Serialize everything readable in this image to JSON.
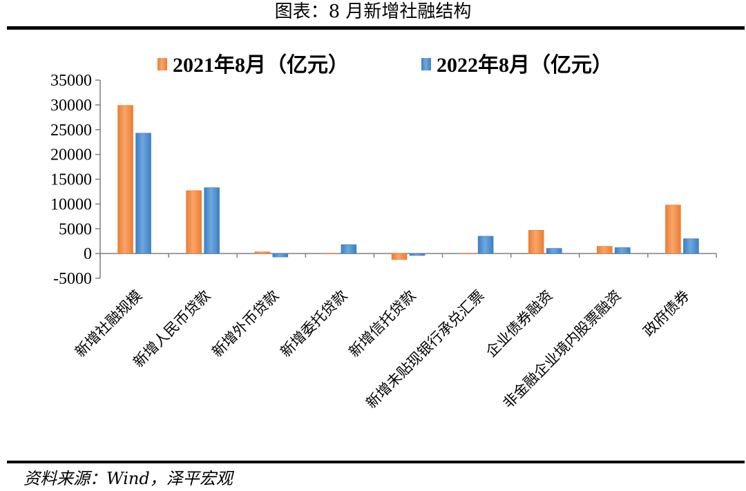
{
  "header": {
    "title": "图表：8 月新增社融结构"
  },
  "footer": {
    "source": "资料来源：Wind，泽平宏观"
  },
  "colors": {
    "series_2021": "#ED7D31",
    "series_2021_light": "#F7A56B",
    "series_2022": "#3C7FC4",
    "series_2022_light": "#6FA7DD"
  },
  "chart_data": {
    "type": "bar",
    "categories": [
      "新增社融规模",
      "新增人民币贷款",
      "新增外币贷款",
      "新增委托贷款",
      "新增信托贷款",
      "新增未贴现银行承兑汇票",
      "企业债券融资",
      "非金融企业境内股票融资",
      "政府债券"
    ],
    "series": [
      {
        "name": "2021年8月（亿元）",
        "values": [
          29900,
          12700,
          350,
          0,
          -1230,
          0,
          4700,
          1470,
          9800
        ]
      },
      {
        "name": "2022年8月（亿元）",
        "values": [
          24300,
          13300,
          -700,
          1800,
          -400,
          3500,
          1050,
          1200,
          3000
        ]
      }
    ],
    "ylim": [
      -5000,
      35000
    ],
    "yticks": [
      "35000",
      "30000",
      "25000",
      "20000",
      "15000",
      "10000",
      "5000",
      "0",
      "-5000"
    ],
    "ytick_values": [
      35000,
      30000,
      25000,
      20000,
      15000,
      10000,
      5000,
      0,
      -5000
    ],
    "legend_position": "top",
    "grid": false
  }
}
